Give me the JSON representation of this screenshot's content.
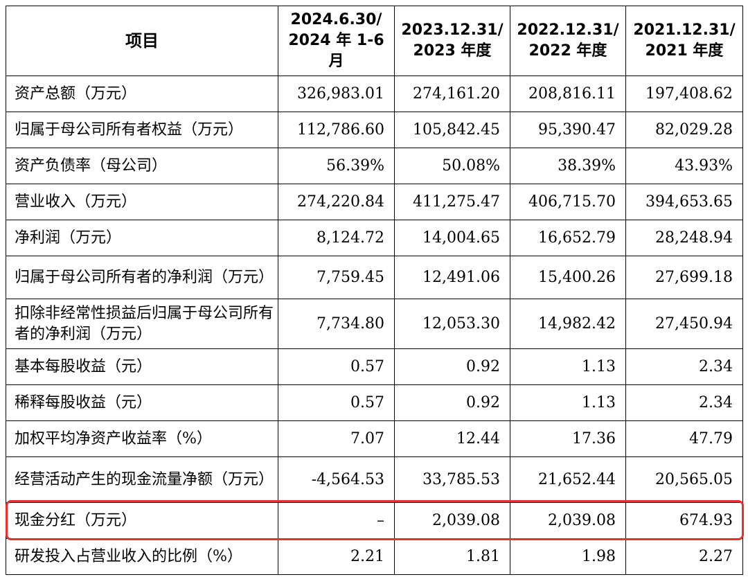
{
  "header": {
    "item": "项目",
    "cols": [
      "2024.6.30/\n2024 年 1-6\n月",
      "2023.12.31/\n2023 年度",
      "2022.12.31/\n2022 年度",
      "2021.12.31/\n2021 年度"
    ]
  },
  "rows": [
    {
      "label": "资产总额（万元）",
      "values": [
        "326,983.01",
        "274,161.20",
        "208,816.11",
        "197,408.62"
      ]
    },
    {
      "label": "归属于母公司所有者权益（万元）",
      "values": [
        "112,786.60",
        "105,842.45",
        "95,390.47",
        "82,029.28"
      ]
    },
    {
      "label": "资产负债率（母公司）",
      "values": [
        "56.39%",
        "50.08%",
        "38.39%",
        "43.93%"
      ]
    },
    {
      "label": "营业收入（万元）",
      "values": [
        "274,220.84",
        "411,275.47",
        "406,715.70",
        "394,653.65"
      ]
    },
    {
      "label": "净利润（万元）",
      "values": [
        "8,124.72",
        "14,004.65",
        "16,652.79",
        "28,248.94"
      ]
    },
    {
      "label": "归属于母公司所有者的净利润（万元）",
      "values": [
        "7,759.45",
        "12,491.06",
        "15,400.26",
        "27,699.18"
      ]
    },
    {
      "label": "扣除非经常性损益后归属于母公司所有者的净利润（万元）",
      "values": [
        "7,734.80",
        "12,053.30",
        "14,982.42",
        "27,450.94"
      ]
    },
    {
      "label": "基本每股收益（元）",
      "values": [
        "0.57",
        "0.92",
        "1.13",
        "2.34"
      ]
    },
    {
      "label": "稀释每股收益（元）",
      "values": [
        "0.57",
        "0.92",
        "1.13",
        "2.34"
      ]
    },
    {
      "label": "加权平均净资产收益率（%）",
      "values": [
        "7.07",
        "12.44",
        "17.36",
        "47.79"
      ]
    },
    {
      "label": "经营活动产生的现金流量净额（万元）",
      "values": [
        "-4,564.53",
        "33,785.53",
        "21,652.44",
        "20,565.05"
      ]
    },
    {
      "label": "现金分红（万元）",
      "values": [
        "–",
        "2,039.08",
        "2,039.08",
        "674.93"
      ]
    },
    {
      "label": "研发投入占营业收入的比例（%）",
      "values": [
        "2.21",
        "1.81",
        "1.98",
        "2.27"
      ]
    }
  ],
  "highlight_color": "#e8302f"
}
